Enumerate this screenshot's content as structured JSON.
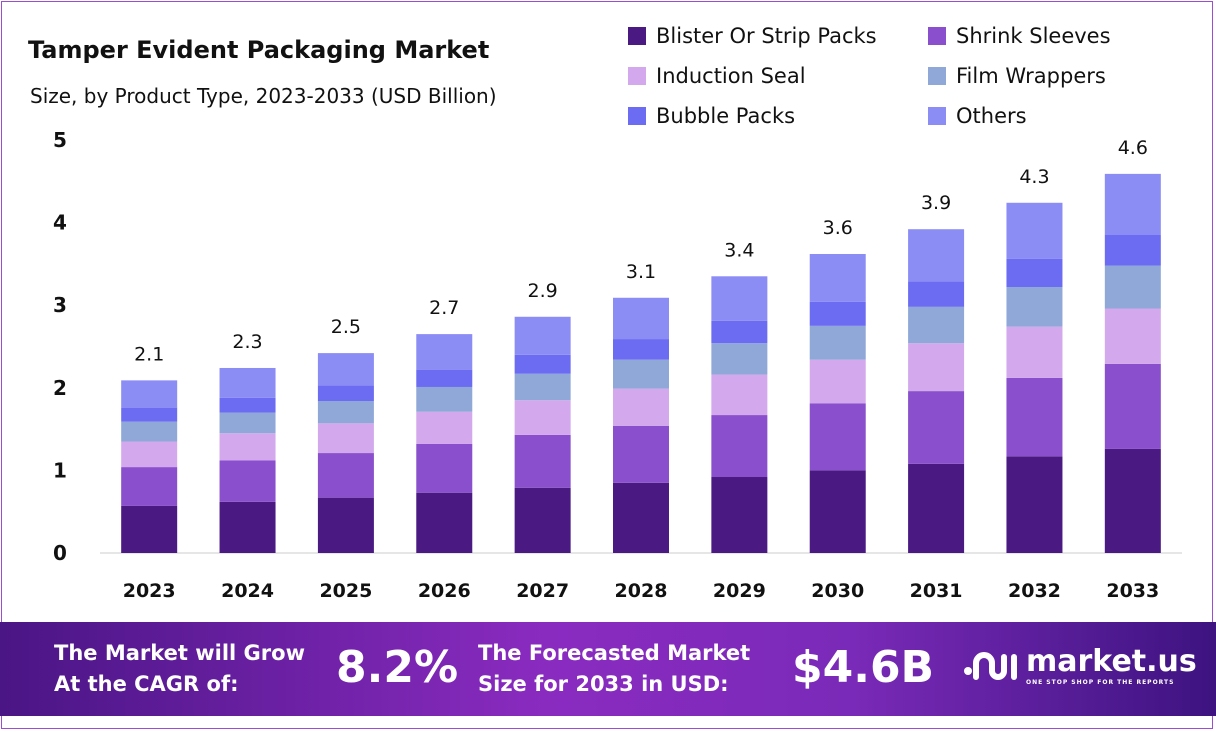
{
  "header": {
    "title": "Tamper Evident Packaging Market",
    "subtitle": "Size, by Product Type, 2023-2033 (USD Billion)"
  },
  "chart_data": {
    "type": "bar",
    "stacked": true,
    "title": "Tamper Evident Packaging Market",
    "subtitle": "Size, by Product Type, 2023-2033 (USD Billion)",
    "categories": [
      "2023",
      "2024",
      "2025",
      "2026",
      "2027",
      "2028",
      "2029",
      "2030",
      "2031",
      "2032",
      "2033"
    ],
    "ylim": [
      0,
      5
    ],
    "yticks": [
      "0",
      "1",
      "2",
      "3",
      "4",
      "5"
    ],
    "grid": false,
    "legend_position": "top-right",
    "totals_labels": [
      "2.1",
      "2.3",
      "2.5",
      "2.7",
      "2.9",
      "3.1",
      "3.4",
      "3.6",
      "3.9",
      "4.3",
      "4.6"
    ],
    "series": [
      {
        "name": "Blister Or Strip Packs",
        "color": "#4a1a82",
        "values": [
          0.57,
          0.62,
          0.67,
          0.73,
          0.79,
          0.85,
          0.92,
          1.0,
          1.08,
          1.17,
          1.26
        ]
      },
      {
        "name": "Shrink Sleeves",
        "color": "#8a4fcc",
        "values": [
          0.47,
          0.5,
          0.54,
          0.59,
          0.64,
          0.69,
          0.75,
          0.81,
          0.88,
          0.95,
          1.03
        ]
      },
      {
        "name": "Induction Seal",
        "color": "#d3a8ec",
        "values": [
          0.31,
          0.33,
          0.36,
          0.39,
          0.42,
          0.45,
          0.49,
          0.53,
          0.58,
          0.62,
          0.67
        ]
      },
      {
        "name": "Film Wrappers",
        "color": "#8fa8d8",
        "values": [
          0.24,
          0.25,
          0.27,
          0.3,
          0.32,
          0.35,
          0.38,
          0.41,
          0.44,
          0.48,
          0.52
        ]
      },
      {
        "name": "Bubble Packs",
        "color": "#6c6cf2",
        "values": [
          0.17,
          0.18,
          0.19,
          0.21,
          0.23,
          0.25,
          0.27,
          0.29,
          0.31,
          0.34,
          0.37
        ]
      },
      {
        "name": "Others",
        "color": "#8c8cf5",
        "values": [
          0.33,
          0.36,
          0.39,
          0.43,
          0.46,
          0.5,
          0.54,
          0.58,
          0.63,
          0.68,
          0.74
        ]
      }
    ]
  },
  "footer": {
    "cagr_label_line1": "The Market will Grow",
    "cagr_label_line2": "At the CAGR of:",
    "cagr_value": "8.2%",
    "forecast_label_line1": "The Forecasted Market",
    "forecast_label_line2": "Size for 2033 in USD:",
    "forecast_value": "$4.6B",
    "logo_text": "market.us",
    "logo_tagline": "ONE STOP SHOP FOR THE REPORTS"
  }
}
